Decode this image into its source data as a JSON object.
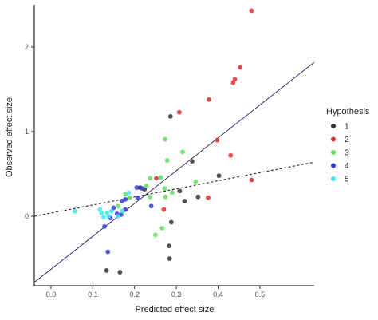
{
  "chart_data": {
    "type": "scatter",
    "title": "",
    "xlabel": "Predicted effect size",
    "ylabel": "Observed effect size",
    "xlim": [
      -0.04,
      0.63
    ],
    "ylim": [
      -0.82,
      2.5
    ],
    "x_ticks": [
      0.0,
      0.1,
      0.2,
      0.3,
      0.4,
      0.5
    ],
    "x_tick_labels": [
      "0.0",
      "0.1",
      "0.2",
      "0.3",
      "0.4",
      "0.5"
    ],
    "y_ticks": [
      0,
      1,
      2
    ],
    "y_tick_labels": [
      "0",
      "1",
      "2"
    ],
    "grid": false,
    "legend": {
      "title": "Hypothesis",
      "placement": "right"
    },
    "series": [
      {
        "name": "1",
        "color": "#333333",
        "points": [
          [
            0.133,
            -0.64
          ],
          [
            0.165,
            -0.66
          ],
          [
            0.213,
            0.34
          ],
          [
            0.224,
            0.32
          ],
          [
            0.283,
            -0.35
          ],
          [
            0.286,
            1.18
          ],
          [
            0.284,
            -0.5
          ],
          [
            0.288,
            -0.07
          ],
          [
            0.308,
            0.3
          ],
          [
            0.32,
            0.18
          ],
          [
            0.338,
            0.65
          ],
          [
            0.352,
            0.23
          ],
          [
            0.402,
            0.48
          ]
        ]
      },
      {
        "name": "2",
        "color": "#e02b2b",
        "points": [
          [
            0.48,
            2.43
          ],
          [
            0.453,
            1.76
          ],
          [
            0.44,
            1.62
          ],
          [
            0.436,
            1.58
          ],
          [
            0.378,
            1.38
          ],
          [
            0.307,
            1.23
          ],
          [
            0.398,
            0.9
          ],
          [
            0.43,
            0.72
          ],
          [
            0.48,
            0.43
          ],
          [
            0.376,
            0.22
          ],
          [
            0.27,
            0.08
          ],
          [
            0.252,
            0.45
          ]
        ]
      },
      {
        "name": "3",
        "color": "#5ee05e",
        "points": [
          [
            0.273,
            0.91
          ],
          [
            0.315,
            0.76
          ],
          [
            0.278,
            0.66
          ],
          [
            0.263,
            0.46
          ],
          [
            0.237,
            0.45
          ],
          [
            0.346,
            0.41
          ],
          [
            0.272,
            0.33
          ],
          [
            0.29,
            0.28
          ],
          [
            0.274,
            0.23
          ],
          [
            0.237,
            0.23
          ],
          [
            0.228,
            0.36
          ],
          [
            0.188,
            0.22
          ],
          [
            0.178,
            0.26
          ],
          [
            0.161,
            0.12
          ],
          [
            0.25,
            -0.22
          ],
          [
            0.266,
            -0.14
          ]
        ]
      },
      {
        "name": "4",
        "color": "#3838d8",
        "points": [
          [
            0.136,
            -0.42
          ],
          [
            0.128,
            -0.12
          ],
          [
            0.142,
            -0.02
          ],
          [
            0.158,
            0.03
          ],
          [
            0.168,
            0.02
          ],
          [
            0.15,
            0.1
          ],
          [
            0.178,
            0.08
          ],
          [
            0.17,
            0.18
          ],
          [
            0.178,
            0.2
          ],
          [
            0.208,
            0.22
          ],
          [
            0.218,
            0.33
          ],
          [
            0.205,
            0.34
          ],
          [
            0.24,
            0.12
          ]
        ]
      },
      {
        "name": "5",
        "color": "#3ee8ee",
        "points": [
          [
            0.057,
            0.06
          ],
          [
            0.117,
            0.08
          ],
          [
            0.121,
            0.04
          ],
          [
            0.126,
            -0.01
          ],
          [
            0.134,
            0.04
          ],
          [
            0.138,
            0.0
          ],
          [
            0.145,
            0.06
          ],
          [
            0.16,
            0.0
          ],
          [
            0.17,
            0.06
          ],
          [
            0.186,
            0.28
          ]
        ]
      }
    ],
    "reference_lines": [
      {
        "style": "solid",
        "color": "#1f1f6e",
        "from": [
          -0.04,
          -0.78
        ],
        "to": [
          0.63,
          1.82
        ]
      },
      {
        "style": "dashed",
        "color": "#222222",
        "from": [
          -0.04,
          0.0
        ],
        "to": [
          0.63,
          0.64
        ]
      }
    ]
  }
}
